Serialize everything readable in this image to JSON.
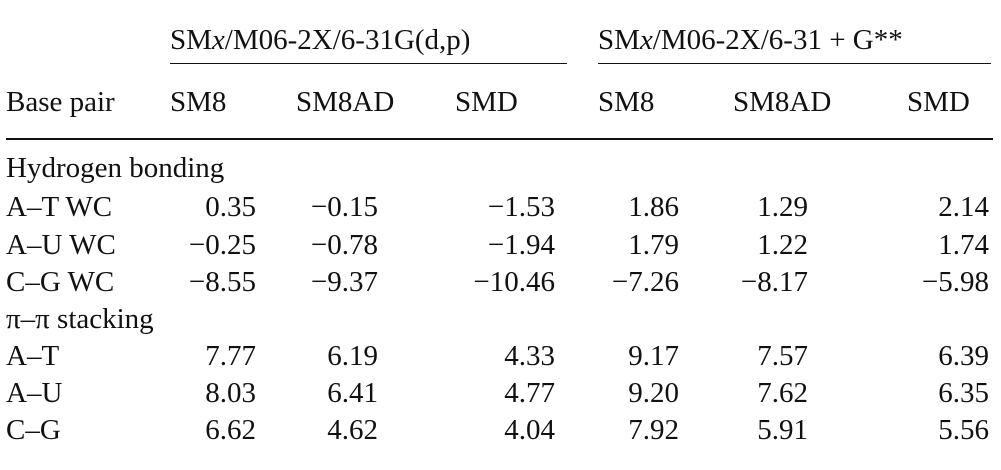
{
  "table": {
    "group_headers": [
      {
        "pre": "SM",
        "var": "x",
        "post": "/M06-2X/6-31G(d,p)"
      },
      {
        "pre": "SM",
        "var": "x",
        "post": "/M06-2X/6-31 + G**"
      }
    ],
    "col_headers": [
      "Base pair",
      "SM8",
      "SM8AD",
      "SMD",
      "SM8",
      "SM8AD",
      "SMD"
    ],
    "sections": [
      {
        "title": "Hydrogen bonding",
        "rows": [
          {
            "label": "A–T WC",
            "values": [
              "0.35",
              "−0.15",
              "−1.53",
              "1.86",
              "1.29",
              "2.14"
            ]
          },
          {
            "label": "A–U WC",
            "values": [
              "−0.25",
              "−0.78",
              "−1.94",
              "1.79",
              "1.22",
              "1.74"
            ]
          },
          {
            "label": "C–G WC",
            "values": [
              "−8.55",
              "−9.37",
              "−10.46",
              "−7.26",
              "−8.17",
              "−5.98"
            ]
          }
        ]
      },
      {
        "title": "π–π stacking",
        "rows": [
          {
            "label": "A–T",
            "values": [
              "7.77",
              "6.19",
              "4.33",
              "9.17",
              "7.57",
              "6.39"
            ]
          },
          {
            "label": "A–U",
            "values": [
              "8.03",
              "6.41",
              "4.77",
              "9.20",
              "7.62",
              "6.35"
            ]
          },
          {
            "label": "C–G",
            "values": [
              "6.62",
              "4.62",
              "4.04",
              "7.92",
              "5.91",
              "5.56"
            ]
          }
        ]
      }
    ]
  }
}
